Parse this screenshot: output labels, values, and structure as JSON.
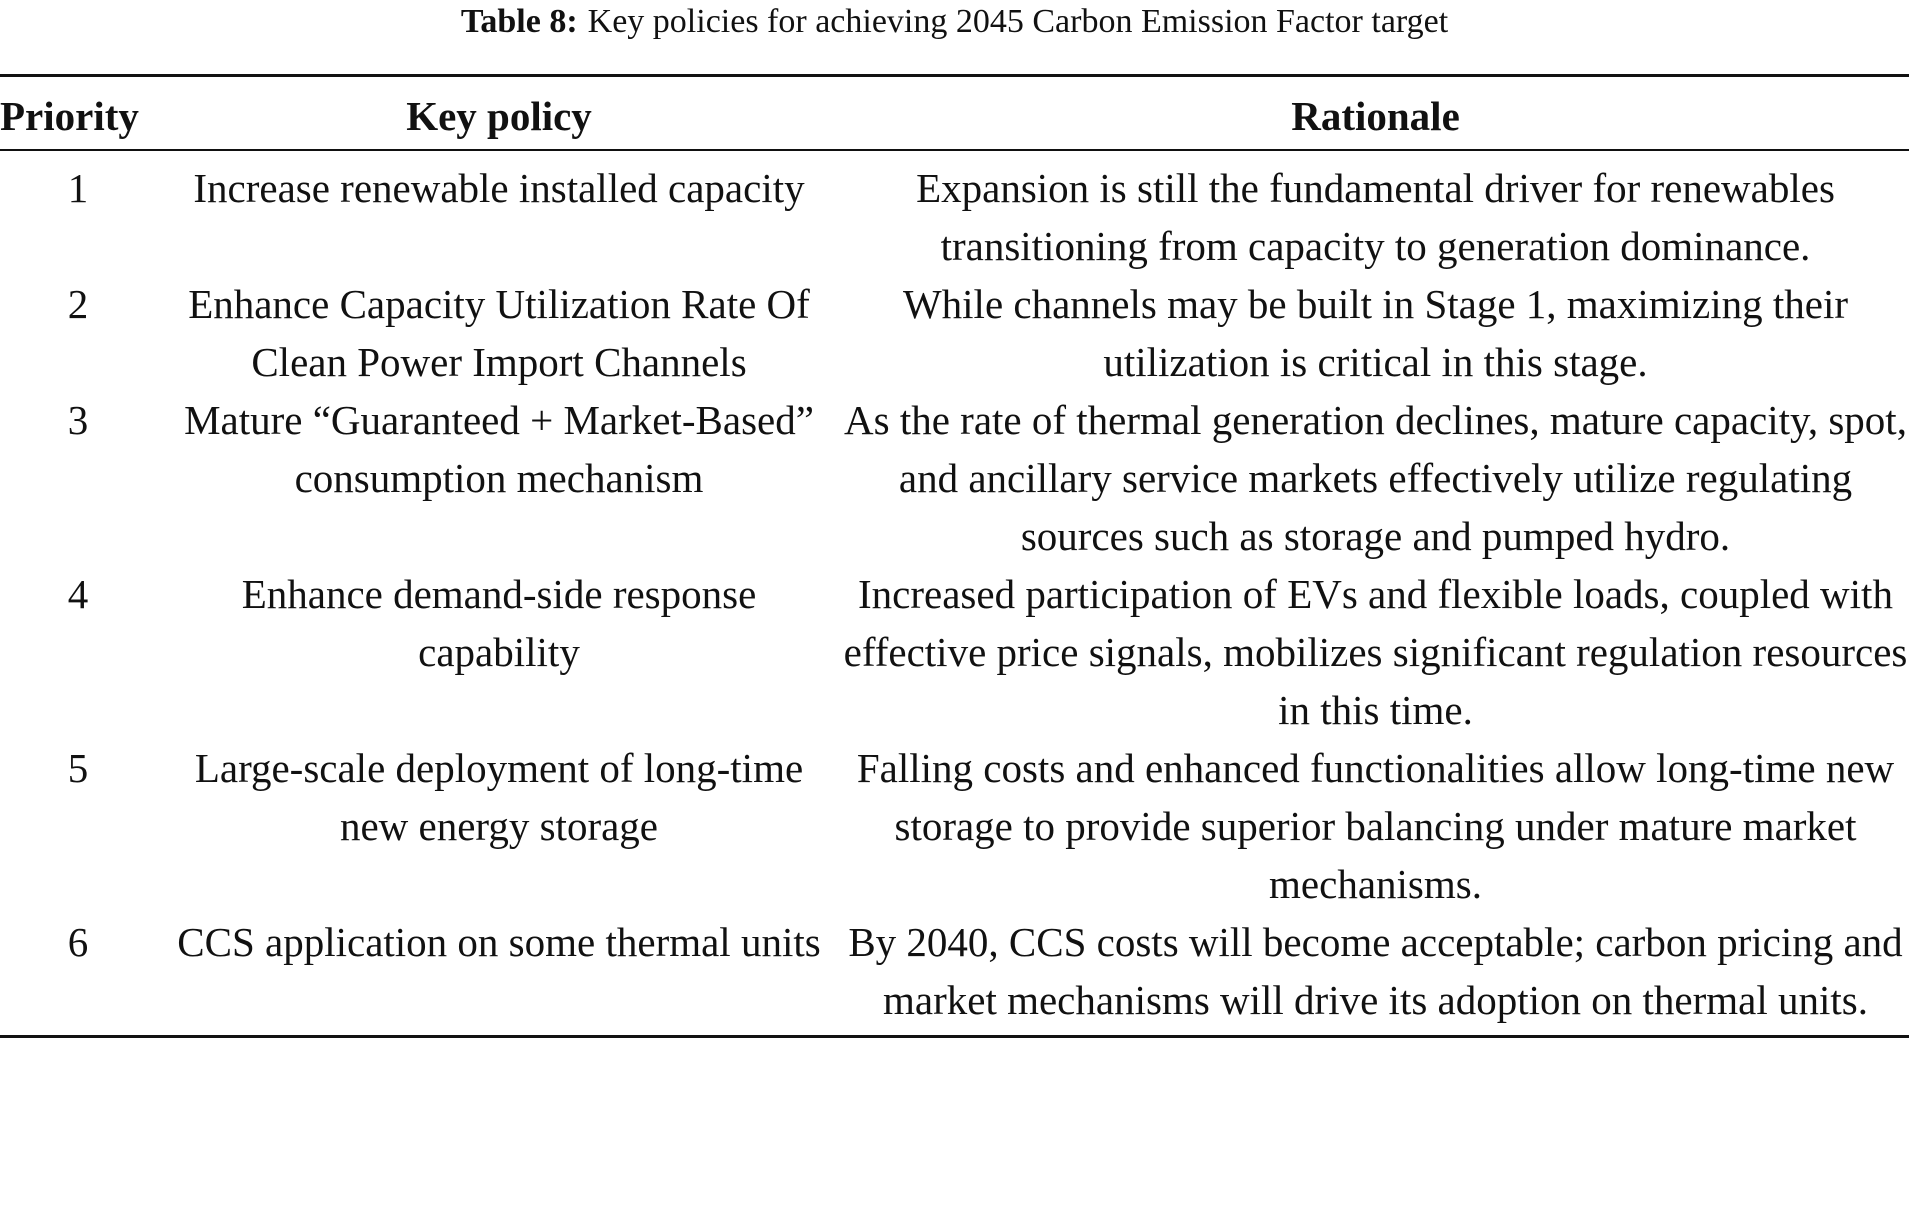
{
  "caption": {
    "label": "Table 8:",
    "text": "Key policies for achieving 2045 Carbon Emission Factor target"
  },
  "table": {
    "headers": {
      "priority": "Priority",
      "policy": "Key policy",
      "rationale": "Rationale"
    },
    "rows": [
      {
        "priority": "1",
        "policy": "Increase renewable installed capacity",
        "rationale": "Expansion is still the fundamental driver for renewables transitioning from capacity to generation dominance."
      },
      {
        "priority": "2",
        "policy": "Enhance Capacity Utilization Rate Of Clean Power Import Channels",
        "rationale": "While channels may be built in Stage 1, maximizing their utilization is critical in this stage."
      },
      {
        "priority": "3",
        "policy": "Mature “Guaranteed + Market-Based” consumption mechanism",
        "rationale": "As the rate of thermal generation declines, mature capacity, spot, and ancillary service markets effectively utilize regulating sources such as storage and pumped hydro."
      },
      {
        "priority": "4",
        "policy": "Enhance demand-side response capability",
        "rationale": "Increased participation of EVs and flexible loads, coupled with effective price signals, mobilizes significant regulation resources in this time."
      },
      {
        "priority": "5",
        "policy": "Large-scale deployment of long-time new energy storage",
        "rationale": "Falling costs and enhanced functionalities allow long-time new storage to provide superior balancing under mature market mechanisms."
      },
      {
        "priority": "6",
        "policy": "CCS application on some thermal units",
        "rationale": "By 2040, CCS costs will become acceptable; carbon pricing and market mechanisms will drive its adoption on thermal units."
      }
    ]
  }
}
